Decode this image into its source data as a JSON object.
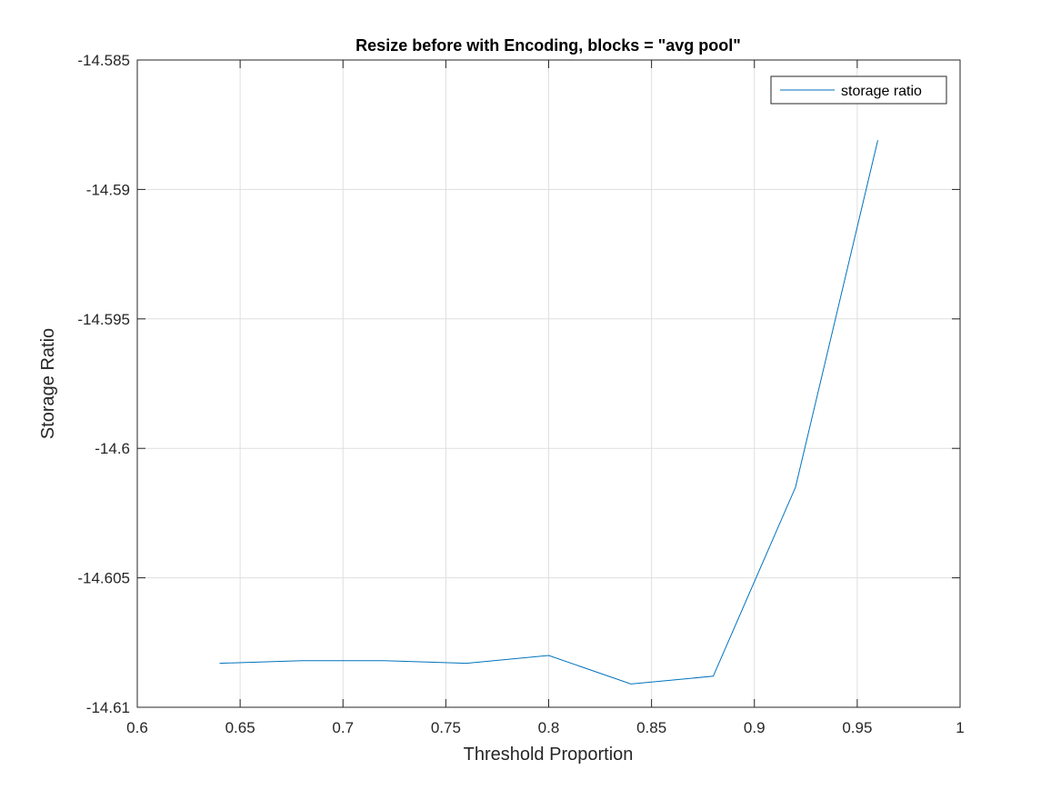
{
  "chart_data": {
    "type": "line",
    "title": "Resize before with Encoding, blocks = \"avg pool\"",
    "xlabel": "Threshold Proportion",
    "ylabel": "Storage Ratio",
    "xlim": [
      0.6,
      1
    ],
    "ylim": [
      -14.61,
      -14.585
    ],
    "xticks": [
      0.6,
      0.65,
      0.7,
      0.75,
      0.8,
      0.85,
      0.9,
      0.95,
      1
    ],
    "xtick_labels": [
      "0.6",
      "0.65",
      "0.7",
      "0.75",
      "0.8",
      "0.85",
      "0.9",
      "0.95",
      "1"
    ],
    "yticks": [
      -14.61,
      -14.605,
      -14.6,
      -14.595,
      -14.59,
      -14.585
    ],
    "ytick_labels": [
      "-14.61",
      "-14.605",
      "-14.6",
      "-14.595",
      "-14.59",
      "-14.585"
    ],
    "grid": true,
    "legend_position": "top-right",
    "series": [
      {
        "name": "storage ratio",
        "color": "#0072BD",
        "x": [
          0.64,
          0.68,
          0.72,
          0.76,
          0.8,
          0.84,
          0.88,
          0.92,
          0.96
        ],
        "y": [
          -14.6083,
          -14.6082,
          -14.6082,
          -14.6083,
          -14.608,
          -14.6091,
          -14.6088,
          -14.6015,
          -14.5881
        ]
      }
    ]
  }
}
